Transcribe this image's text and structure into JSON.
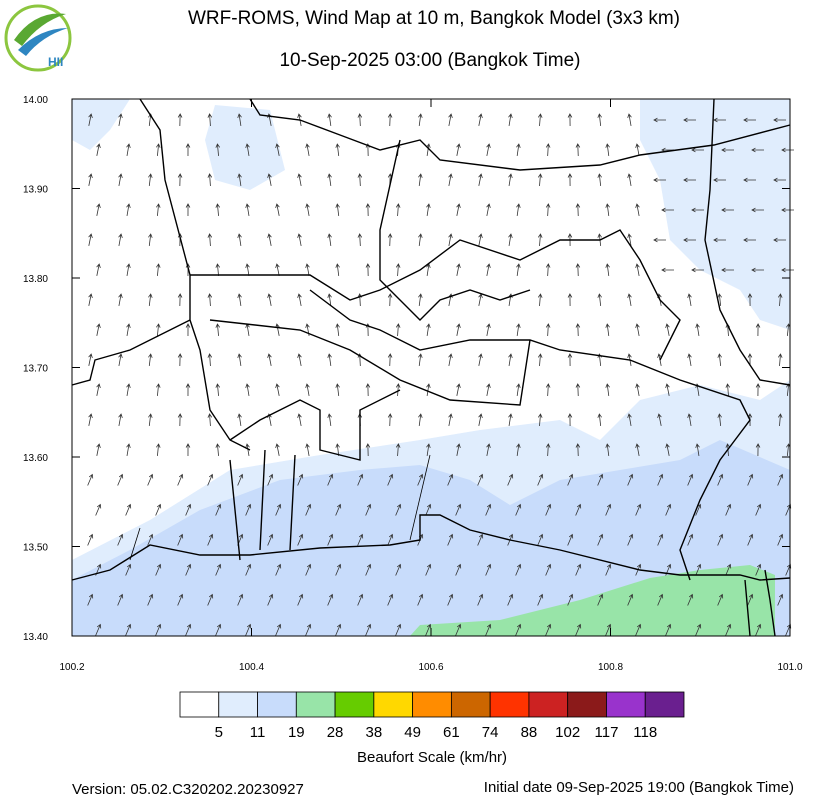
{
  "header": {
    "title": "WRF-ROMS, Wind Map at 10 m, Bangkok Model (3x3 km)",
    "subtitle": "10-Sep-2025 03:00 (Bangkok Time)",
    "logo_text": "HII"
  },
  "axes": {
    "x_ticks": [
      "100.2",
      "100.4",
      "100.6",
      "100.8",
      "101.0"
    ],
    "y_ticks": [
      "14.00",
      "13.90",
      "13.80",
      "13.70",
      "13.60",
      "13.50",
      "13.40"
    ]
  },
  "legend": {
    "title": "Beaufort Scale (km/hr)",
    "labels": [
      "5",
      "11",
      "19",
      "28",
      "38",
      "49",
      "61",
      "74",
      "88",
      "102",
      "117",
      "118"
    ],
    "colors": [
      "#ffffff",
      "#e0edfd",
      "#c8dcfb",
      "#98e4a8",
      "#66cc00",
      "#ffd800",
      "#ff8c00",
      "#cc6600",
      "#ff3300",
      "#cc2222",
      "#8b1a1a",
      "#9933cc",
      "#6a1f8f"
    ]
  },
  "footer": {
    "version": "Version: 05.02.C320202.20230927",
    "initial_date": "Initial date 09-Sep-2025 19:00 (Bangkok Time)"
  }
}
